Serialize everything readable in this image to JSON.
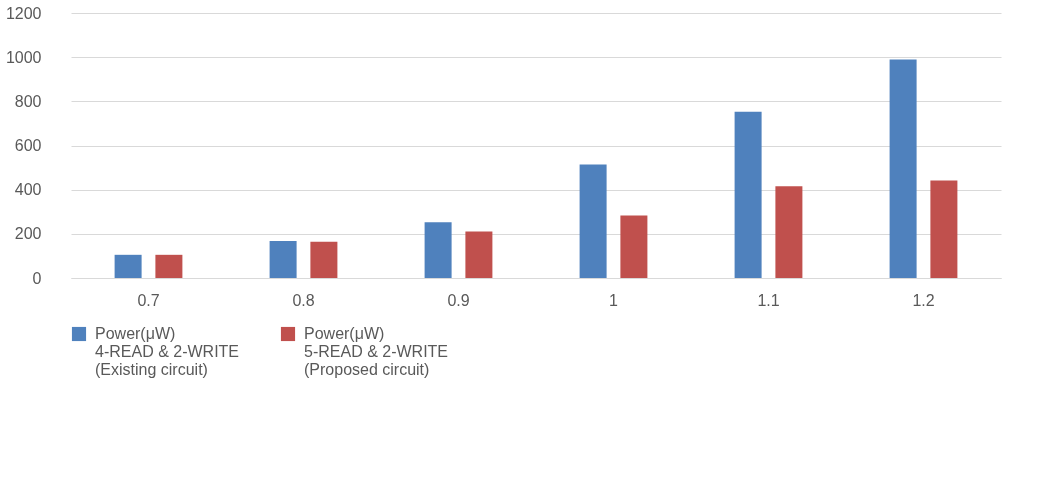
{
  "chart_data": {
    "type": "bar",
    "categories": [
      "0.7",
      "0.8",
      "0.9",
      "1",
      "1.1",
      "1.2"
    ],
    "series": [
      {
        "name": "Power(μW)\n4-READ & 2-WRITE\n(Existing circuit)",
        "color": "#4f81bd",
        "values": [
          105,
          168,
          252,
          514,
          753,
          989
        ]
      },
      {
        "name": "Power(μW)\n5-READ & 2-WRITE\n(Proposed circuit)",
        "color": "#c0504d",
        "values": [
          105,
          164,
          211,
          283,
          415,
          441
        ]
      }
    ],
    "ylim": [
      0,
      1200
    ],
    "yticks": [
      0,
      200,
      400,
      600,
      800,
      1000,
      1200
    ],
    "grid": "y",
    "legend": "bottom"
  }
}
